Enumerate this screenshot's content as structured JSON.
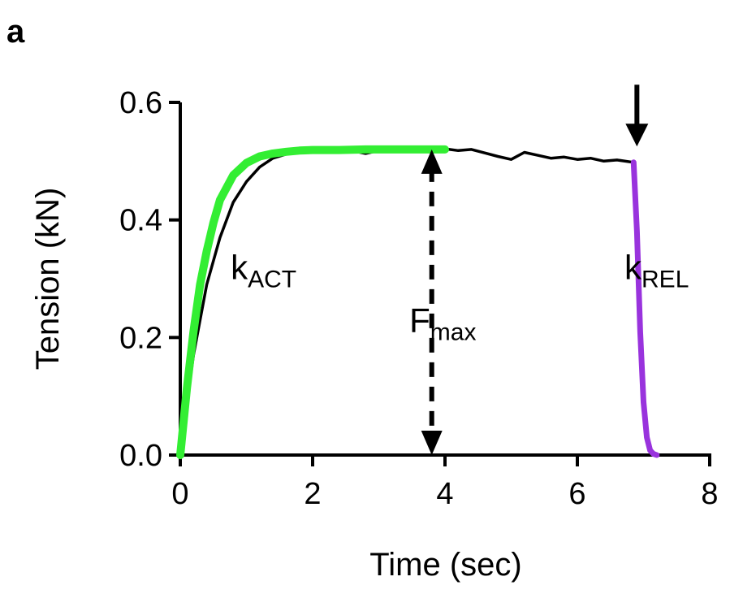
{
  "panel_label": "a",
  "chart_data": {
    "type": "line",
    "title": "",
    "xlabel": "Time (sec)",
    "ylabel": "Tension (kN)",
    "xlim": [
      0,
      8
    ],
    "ylim": [
      0,
      0.6
    ],
    "x_ticks": [
      0,
      2,
      4,
      6,
      8
    ],
    "x_tick_labels": [
      "0",
      "2",
      "4",
      "6",
      "8"
    ],
    "y_ticks": [
      0.0,
      0.2,
      0.4,
      0.6
    ],
    "y_tick_labels": [
      "0.0",
      "0.2",
      "0.4",
      "0.6"
    ],
    "grid": false,
    "series": [
      {
        "color": "#000000",
        "x": [
          0,
          0.1,
          0.2,
          0.4,
          0.6,
          0.8,
          1.0,
          1.2,
          1.4,
          1.6,
          1.8,
          2.0,
          2.2,
          2.5,
          2.8,
          3.0,
          3.2,
          3.5,
          3.8,
          4.0,
          4.2,
          4.4,
          4.6,
          4.8,
          5.0,
          5.2,
          5.4,
          5.6,
          5.8,
          6.0,
          6.2,
          6.4,
          6.6,
          6.85
        ],
        "y": [
          0,
          0.09,
          0.17,
          0.29,
          0.37,
          0.43,
          0.465,
          0.49,
          0.505,
          0.512,
          0.516,
          0.518,
          0.515,
          0.52,
          0.513,
          0.518,
          0.522,
          0.517,
          0.52,
          0.521,
          0.518,
          0.52,
          0.514,
          0.508,
          0.503,
          0.515,
          0.51,
          0.505,
          0.507,
          0.503,
          0.505,
          0.5,
          0.502,
          0.498
        ]
      },
      {
        "color": "#33ee33",
        "x": [
          0,
          0.1,
          0.2,
          0.3,
          0.4,
          0.5,
          0.6,
          0.8,
          1.0,
          1.2,
          1.4,
          1.6,
          1.8,
          2.0,
          2.4,
          2.8,
          3.2,
          3.6,
          4.0
        ],
        "y": [
          0,
          0.114,
          0.21,
          0.29,
          0.347,
          0.395,
          0.434,
          0.476,
          0.497,
          0.508,
          0.513,
          0.516,
          0.518,
          0.519,
          0.519,
          0.52,
          0.52,
          0.52,
          0.52
        ]
      },
      {
        "color": "#9933dd",
        "x": [
          6.85,
          6.9,
          6.95,
          7.0,
          7.05,
          7.1,
          7.15,
          7.2
        ],
        "y": [
          0.498,
          0.38,
          0.21,
          0.09,
          0.03,
          0.008,
          0.002,
          0.0
        ]
      }
    ],
    "annotations": [
      {
        "text": "k",
        "sub": "ACT",
        "x": 1.4,
        "y": 0.32
      },
      {
        "text": "F",
        "sub": "max",
        "x": 4.1,
        "y": 0.23
      },
      {
        "text": "k",
        "sub": "REL",
        "x": 7.35,
        "y": 0.32
      }
    ],
    "double_arrow": {
      "x": 3.8,
      "y_from": 0.0,
      "y_to": 0.52,
      "style": "dashed"
    },
    "down_arrow": {
      "x": 6.9,
      "y_from": 0.63,
      "y_to": 0.525
    }
  }
}
